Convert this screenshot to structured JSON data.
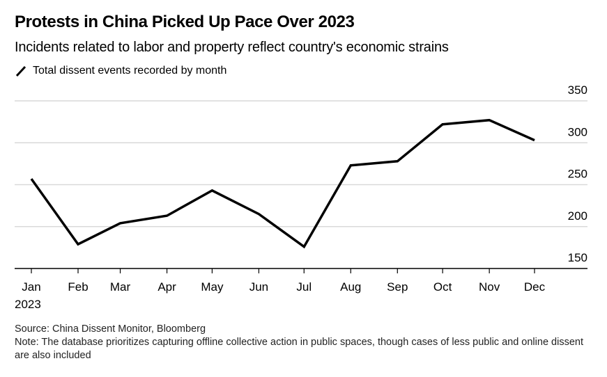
{
  "title": "Protests in China Picked Up Pace Over 2023",
  "subtitle": "Incidents related to labor and property reflect country's economic strains",
  "legend": {
    "icon": "line-swatch-icon",
    "label": "Total dissent events recorded by month"
  },
  "footer": {
    "source": "Source: China Dissent Monitor, Bloomberg",
    "note": "Note: The database prioritizes capturing offline collective action in public spaces, though cases of less public and online dissent are also included"
  },
  "colors": {
    "line": "#000000",
    "grid": "#d9d9d9",
    "axis": "#000000"
  },
  "chart_data": {
    "type": "line",
    "title": "Protests in China Picked Up Pace Over 2023",
    "subtitle": "Incidents related to labor and property reflect country's economic strains",
    "xlabel": "",
    "ylabel": "",
    "categories": [
      "Jan",
      "Feb",
      "Mar",
      "Apr",
      "May",
      "Jun",
      "Jul",
      "Aug",
      "Sep",
      "Oct",
      "Nov",
      "Dec"
    ],
    "x_day_of_year": [
      1,
      32,
      60,
      91,
      121,
      152,
      182,
      213,
      244,
      274,
      305,
      335
    ],
    "x_secondary_label": "2023",
    "series": [
      {
        "name": "Total dissent events recorded by month",
        "values": [
          257,
          179,
          204,
          213,
          243,
          215,
          176,
          273,
          278,
          322,
          327,
          303
        ]
      }
    ],
    "yticks": [
      150,
      200,
      250,
      300,
      350
    ],
    "ylim": [
      150,
      350
    ],
    "xlim_day_of_year": [
      -10,
      370
    ],
    "grid": true,
    "y_axis_side": "right",
    "legend_position": "top-left"
  }
}
